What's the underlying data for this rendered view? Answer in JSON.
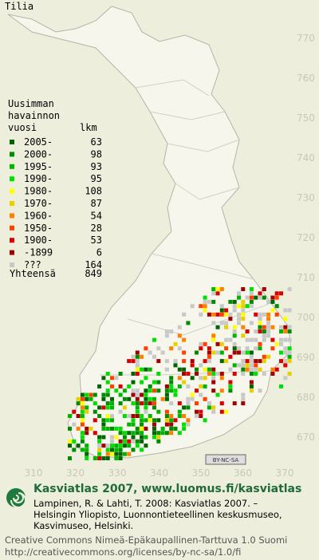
{
  "title": "Tilia",
  "legend": {
    "header": [
      "Uusimman",
      "havainnon"
    ],
    "col_year": "vuosi",
    "col_count": "lkm",
    "rows": [
      {
        "label": "2005-",
        "count": 63,
        "color": "#006400"
      },
      {
        "label": "2000-",
        "count": 98,
        "color": "#008c00"
      },
      {
        "label": "1995-",
        "count": 93,
        "color": "#00b400"
      },
      {
        "label": "1990-",
        "count": 95,
        "color": "#00e000"
      },
      {
        "label": "1980-",
        "count": 108,
        "color": "#ffff00"
      },
      {
        "label": "1970-",
        "count": 87,
        "color": "#e8d000"
      },
      {
        "label": "1960-",
        "count": 54,
        "color": "#ff8000"
      },
      {
        "label": "1950-",
        "count": 28,
        "color": "#ff4000"
      },
      {
        "label": "1900-",
        "count": 53,
        "color": "#d80000"
      },
      {
        "label": "-1899",
        "count": 6,
        "color": "#a00000"
      },
      {
        "label": "???",
        "count": 164,
        "color": "#c8c8c8"
      }
    ],
    "total_label": "Yhteensä",
    "total": 849
  },
  "map_axes": {
    "x_labels": [
      310,
      320,
      330,
      340,
      350,
      360,
      370
    ],
    "y_labels": [
      770,
      760,
      750,
      740,
      730,
      720,
      710,
      700,
      690,
      680,
      670
    ]
  },
  "license_badge": "BY-NC-SA",
  "footer": {
    "heading": "Kasviatlas 2007, www.luomus.fi/kasviatlas",
    "citation": [
      "Lampinen, R. & Lahti, T. 2008: Kasviatlas 2007. –",
      "Helsingin Yliopisto, Luonnontieteellinen keskusmuseo,",
      "Kasvimuseo, Helsinki."
    ],
    "license": [
      "Creative Commons Nimeä-Epäkaupallinen-Tarttuva 1.0 Suomi",
      "http://creativecommons.org/licenses/by-nc-sa/1.0/fi"
    ]
  }
}
